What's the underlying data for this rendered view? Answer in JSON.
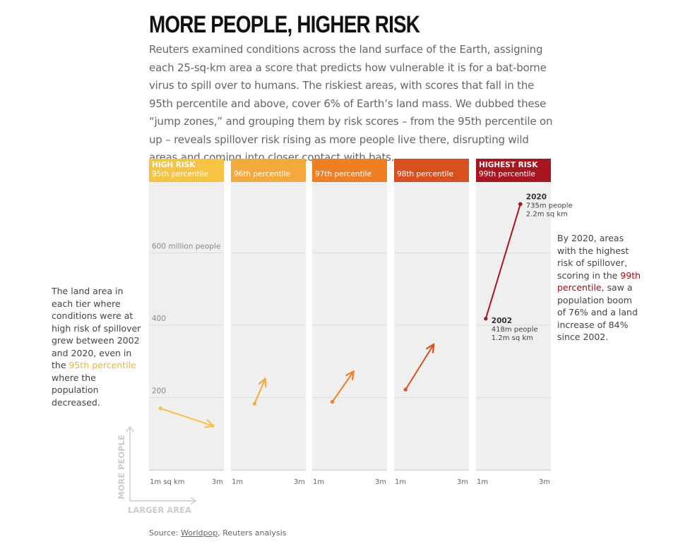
{
  "title": "MORE PEOPLE, HIGHER RISK",
  "intro": "Reuters examined conditions across the land surface of the Earth, assigning each 25-sq-km area a score that predicts how vulnerable it is for a bat-borne virus to spill over to humans. The riskiest areas, with scores that fall in the 95th percentile and above, cover 6% of Earth’s land mass. We dubbed these “jump zones,” and grouping them by risk scores – from the 95th percentile on up – reveals spillover risk rising as more people live there, disrupting wild areas and coming into closer contact with bats.",
  "note_left": {
    "before": "The land area in each tier where conditions were at high risk of spillover grew between 2002 and 2020, even in the ",
    "highlight": "95th percentile",
    "after": " where the population decreased."
  },
  "note_right": {
    "before": "By 2020, areas with the highest risk of spillover, scoring in the ",
    "highlight": "99th percentile",
    "after": ", saw a population boom of 76% and a land increase of 84% since 2002."
  },
  "source": {
    "prefix": "Source: ",
    "link": "Worldpop",
    "suffix": ", Reuters analysis"
  },
  "colors": {
    "panel_bg": "#efefef",
    "gridline": "#dcdcdc",
    "axis_text": "#888888",
    "legend_axis": "#cccccc"
  },
  "chart_data": {
    "type": "line",
    "title": "MORE PEOPLE, HIGHER RISK",
    "x_axis": {
      "min": 1,
      "max": 3,
      "min_label": "1m sq km",
      "max_label": "3m",
      "unit": "million sq km"
    },
    "y_axis": {
      "min": 0,
      "max": 780,
      "ticks": [
        200,
        400,
        600
      ],
      "tick_labels": [
        "200",
        "400",
        "600 million people"
      ],
      "unit": "million people"
    },
    "legend_axes": {
      "y": "MORE PEOPLE",
      "x": "LARGER AREA"
    },
    "panels": [
      {
        "tier_label": "HIGH RISK",
        "percentile": "95th percentile",
        "color": "#f6c342",
        "points": [
          {
            "year": 2002,
            "area": 1.25,
            "population": 170
          },
          {
            "year": 2020,
            "area": 2.75,
            "population": 122
          }
        ]
      },
      {
        "tier_label": "",
        "percentile": "96th percentile",
        "color": "#f5a93a",
        "points": [
          {
            "year": 2002,
            "area": 1.6,
            "population": 183
          },
          {
            "year": 2020,
            "area": 1.9,
            "population": 250
          }
        ]
      },
      {
        "tier_label": "",
        "percentile": "97th percentile",
        "color": "#ef7f22",
        "points": [
          {
            "year": 2002,
            "area": 1.5,
            "population": 188
          },
          {
            "year": 2020,
            "area": 2.1,
            "population": 270
          }
        ]
      },
      {
        "tier_label": "",
        "percentile": "98th percentile",
        "color": "#d7501e",
        "points": [
          {
            "year": 2002,
            "area": 1.25,
            "population": 222
          },
          {
            "year": 2020,
            "area": 2.05,
            "population": 345
          }
        ]
      },
      {
        "tier_label": "HIGHEST RISK",
        "percentile": "99th percentile",
        "color": "#a8141f",
        "points": [
          {
            "year": 2002,
            "area": 1.2,
            "population": 418,
            "label_year": "2002",
            "label_pop": "418m people",
            "label_area": "1.2m sq km"
          },
          {
            "year": 2020,
            "area": 2.2,
            "population": 735,
            "label_year": "2020",
            "label_pop": "735m people",
            "label_area": "2.2m sq km"
          }
        ]
      }
    ]
  }
}
